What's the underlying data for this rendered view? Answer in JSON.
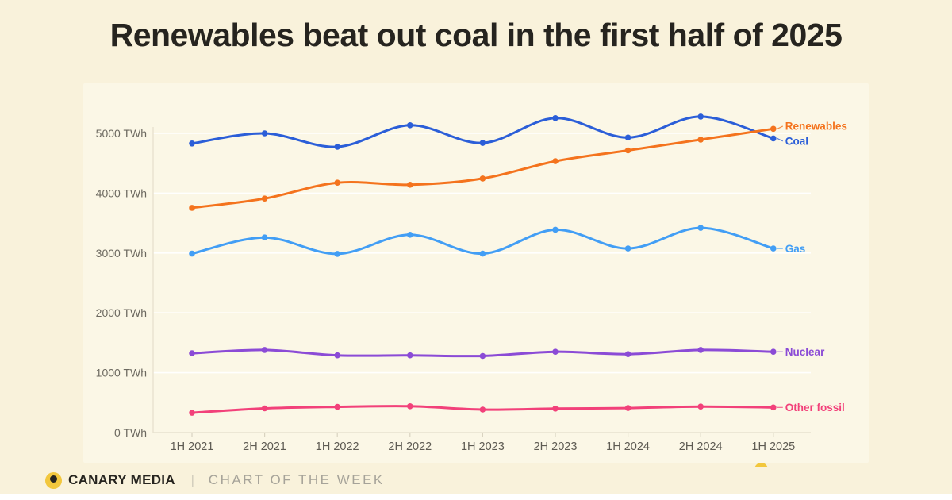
{
  "page": {
    "title": "Renewables beat out coal in the first half of 2025"
  },
  "footer": {
    "brand": "CANARY MEDIA",
    "divider": "|",
    "series_label": "CHART OF THE WEEK"
  },
  "colors": {
    "logo_yellow": "#F2C73D",
    "renewables": "#F4731D",
    "coal": "#2B5ED8",
    "gas": "#429EF5",
    "nuclear": "#8B4BD6",
    "other_fossil": "#F2417A"
  },
  "chart_data": {
    "type": "line",
    "unit": "TWh",
    "title": "Renewables beat out coal in the first half of 2025",
    "xlabel": "",
    "ylabel": "TWh",
    "grid": true,
    "legend_position": "line-end-labels",
    "ylim": [
      0,
      5500
    ],
    "yticks": [
      0,
      1000,
      2000,
      3000,
      4000,
      5000
    ],
    "ytick_labels": [
      "0 TWh",
      "1000 TWh",
      "2000 TWh",
      "3000 TWh",
      "4000 TWh",
      "5000 TWh"
    ],
    "categories": [
      "1H 2021",
      "2H 2021",
      "1H 2022",
      "2H 2022",
      "1H 2023",
      "2H 2023",
      "1H 2024",
      "2H 2024",
      "1H 2025"
    ],
    "series": [
      {
        "name": "Renewables",
        "color": "#F4731D",
        "values": [
          3755,
          3910,
          4175,
          4140,
          4245,
          4535,
          4715,
          4895,
          5075
        ]
      },
      {
        "name": "Coal",
        "color": "#2B5ED8",
        "values": [
          4830,
          5000,
          4775,
          5135,
          4840,
          5255,
          4930,
          5280,
          4915
        ]
      },
      {
        "name": "Gas",
        "color": "#429EF5",
        "values": [
          2990,
          3260,
          2985,
          3305,
          2990,
          3390,
          3075,
          3420,
          3075
        ]
      },
      {
        "name": "Nuclear",
        "color": "#8B4BD6",
        "values": [
          1325,
          1380,
          1290,
          1290,
          1280,
          1350,
          1310,
          1380,
          1350
        ]
      },
      {
        "name": "Other fossil",
        "color": "#F2417A",
        "values": [
          330,
          405,
          430,
          440,
          385,
          400,
          410,
          435,
          420
        ]
      }
    ]
  }
}
